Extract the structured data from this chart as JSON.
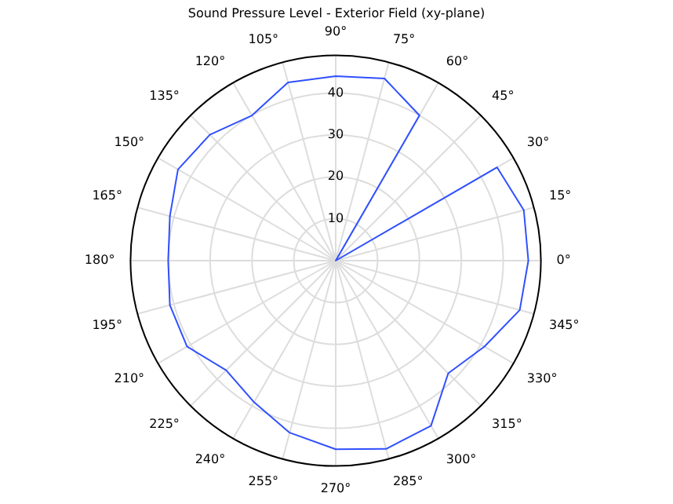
{
  "chart_data": {
    "type": "radar",
    "title": "Sound Pressure Level - Exterior Field (xy-plane)",
    "categories": [
      "90°",
      "75°",
      "60°",
      "45°",
      "30°",
      "15°",
      "0°",
      "345°",
      "330°",
      "315°",
      "300°",
      "285°",
      "270°",
      "255°",
      "240°",
      "225°",
      "210°",
      "195°",
      "180°",
      "165°",
      "150°",
      "135°",
      "120°",
      "105°"
    ],
    "series": [
      {
        "color": "#3050ff",
        "values": [
          44,
          45,
          40,
          0,
          44.5,
          46.5,
          46,
          45.5,
          41,
          38,
          45.5,
          46.5,
          45,
          42.5,
          39,
          37,
          41,
          41,
          40,
          41,
          43.5,
          42.5,
          40,
          44
        ]
      }
    ],
    "ylim": [
      0,
      49
    ],
    "yticks": [
      10,
      20,
      30,
      40
    ],
    "grid": true,
    "legend": false,
    "marker": "none",
    "line_style": "solid"
  }
}
